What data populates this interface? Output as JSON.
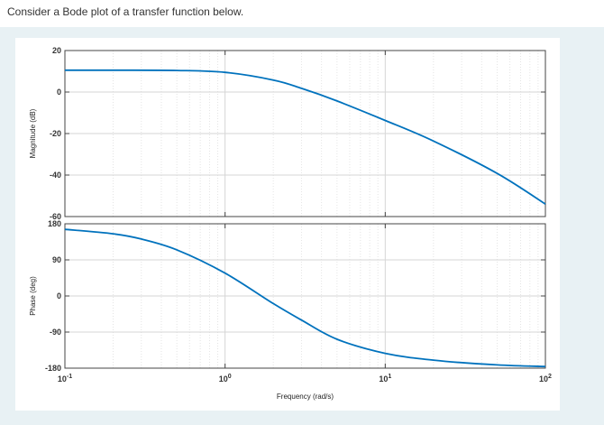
{
  "question": "Consider a Bode plot of a transfer function below.",
  "chart_data": {
    "type": "line",
    "xscale": "log",
    "xlim": [
      0.1,
      100
    ],
    "x_tick_labels": [
      "10^-1",
      "10^0",
      "10^1",
      "10^2"
    ],
    "x_tick_values": [
      0.1,
      1,
      10,
      100
    ],
    "xlabel": "Frequency  (rad/s)",
    "grid": true,
    "line_color": "#0072BD",
    "subplots": [
      {
        "name": "magnitude",
        "ylabel": "Magnitude (dB)",
        "ylim": [
          -60,
          20
        ],
        "yticks": [
          "20",
          "0",
          "-20",
          "-40",
          "-60"
        ],
        "ytick_values": [
          20,
          0,
          -20,
          -40,
          -60
        ],
        "x": [
          0.1,
          0.2,
          0.5,
          1,
          2,
          3,
          5,
          10,
          20,
          50,
          100
        ],
        "y": [
          10.5,
          10.5,
          10.4,
          9.5,
          5.8,
          1.8,
          -4.3,
          -13.7,
          -23.6,
          -39.2,
          -54
        ]
      },
      {
        "name": "phase",
        "ylabel": "Phase (deg)",
        "ylim": [
          -180,
          180
        ],
        "yticks": [
          "180",
          "90",
          "0",
          "-90",
          "-180"
        ],
        "ytick_values": [
          180,
          90,
          0,
          -90,
          -180
        ],
        "x": [
          0.1,
          0.2,
          0.3,
          0.5,
          1,
          2,
          3,
          5,
          10,
          20,
          50,
          100
        ],
        "y": [
          166,
          155,
          142,
          115,
          57,
          -19,
          -60,
          -108,
          -143,
          -160,
          -172,
          -176
        ]
      }
    ]
  }
}
